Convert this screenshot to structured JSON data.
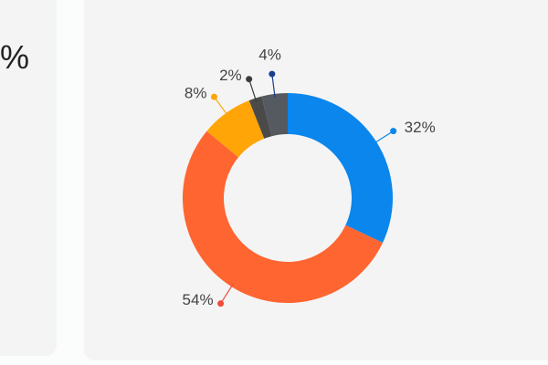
{
  "left_card": {
    "text": "%"
  },
  "chart_data": {
    "type": "donut",
    "values": [
      32,
      54,
      8,
      2,
      4
    ],
    "value_labels": [
      "32%",
      "54%",
      "8%",
      "2%",
      "4%"
    ],
    "colors": [
      "#0a86ec",
      "#ff6530",
      "#ffa507",
      "#4a4a4a",
      "#555960"
    ],
    "leader_colors": [
      "#0a86ec",
      "#f04c3a",
      "#ffa507",
      "#3a3a3a",
      "#1b3f8f"
    ]
  }
}
